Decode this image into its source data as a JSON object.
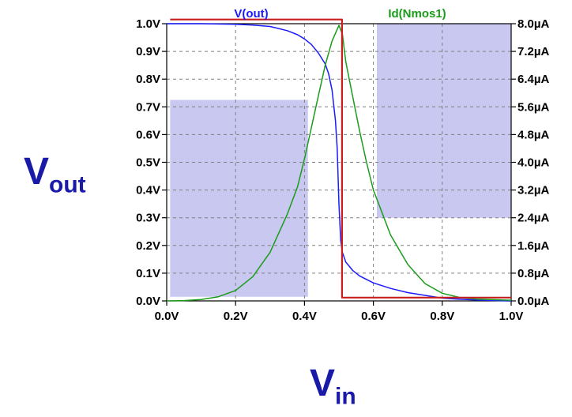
{
  "chart_data": {
    "type": "line",
    "xlabel": {
      "main": "V",
      "sub": "in"
    },
    "ylabel": {
      "main": "V",
      "sub": "out"
    },
    "x_ticks": [
      "0.0V",
      "0.2V",
      "0.4V",
      "0.6V",
      "0.8V",
      "1.0V"
    ],
    "y_ticks_left": [
      "0.0V",
      "0.1V",
      "0.2V",
      "0.3V",
      "0.4V",
      "0.5V",
      "0.6V",
      "0.7V",
      "0.8V",
      "0.9V",
      "1.0V"
    ],
    "y_ticks_right": [
      "0.0µA",
      "0.8µA",
      "1.6µA",
      "2.4µA",
      "3.2µA",
      "4.0µA",
      "4.8µA",
      "5.6µA",
      "6.4µA",
      "7.2µA",
      "8.0µA"
    ],
    "xlim": [
      0,
      1.0
    ],
    "ylim_left": [
      0,
      1.0
    ],
    "ylim_right": [
      0,
      8.0
    ],
    "grid": true,
    "series": [
      {
        "name": "V(out)",
        "axis": "left",
        "color": "#1a1aff",
        "x": [
          0,
          0.1,
          0.2,
          0.25,
          0.3,
          0.35,
          0.38,
          0.4,
          0.42,
          0.44,
          0.46,
          0.47,
          0.48,
          0.49,
          0.495,
          0.5,
          0.505,
          0.51,
          0.52,
          0.54,
          0.56,
          0.6,
          0.65,
          0.7,
          0.75,
          0.8,
          0.85,
          0.9,
          1.0
        ],
        "y": [
          1.0,
          1.0,
          0.998,
          0.995,
          0.99,
          0.975,
          0.96,
          0.945,
          0.925,
          0.895,
          0.855,
          0.82,
          0.76,
          0.65,
          0.55,
          0.35,
          0.22,
          0.175,
          0.14,
          0.11,
          0.09,
          0.065,
          0.045,
          0.03,
          0.02,
          0.01,
          0.006,
          0.003,
          0.0
        ]
      },
      {
        "name": "Id(Nmos1)",
        "axis": "right",
        "color": "#1a9c1a",
        "x": [
          0,
          0.05,
          0.1,
          0.15,
          0.2,
          0.25,
          0.3,
          0.35,
          0.38,
          0.4,
          0.42,
          0.44,
          0.46,
          0.48,
          0.5,
          0.51,
          0.52,
          0.54,
          0.56,
          0.58,
          0.6,
          0.65,
          0.7,
          0.75,
          0.8,
          0.85,
          0.9,
          1.0
        ],
        "y": [
          0,
          0.01,
          0.04,
          0.12,
          0.3,
          0.7,
          1.4,
          2.5,
          3.3,
          4.1,
          5.0,
          5.9,
          6.8,
          7.5,
          7.95,
          7.7,
          6.9,
          5.9,
          4.9,
          4.0,
          3.2,
          1.9,
          1.05,
          0.5,
          0.22,
          0.1,
          0.05,
          0.02
        ]
      },
      {
        "name": "",
        "axis": "left",
        "color": "#c81e1e",
        "x": [
          0.01,
          0.509,
          0.509,
          1.0
        ],
        "y": [
          1.015,
          1.015,
          0.012,
          0.012
        ]
      }
    ],
    "shaded_regions": [
      {
        "x": [
          0.01,
          0.41
        ],
        "y": [
          0.015,
          0.725
        ],
        "color": "#c8c8f0"
      },
      {
        "x": [
          0.61,
          1.0
        ],
        "y": [
          0.3,
          1.0
        ],
        "color": "#c8c8f0"
      }
    ]
  }
}
